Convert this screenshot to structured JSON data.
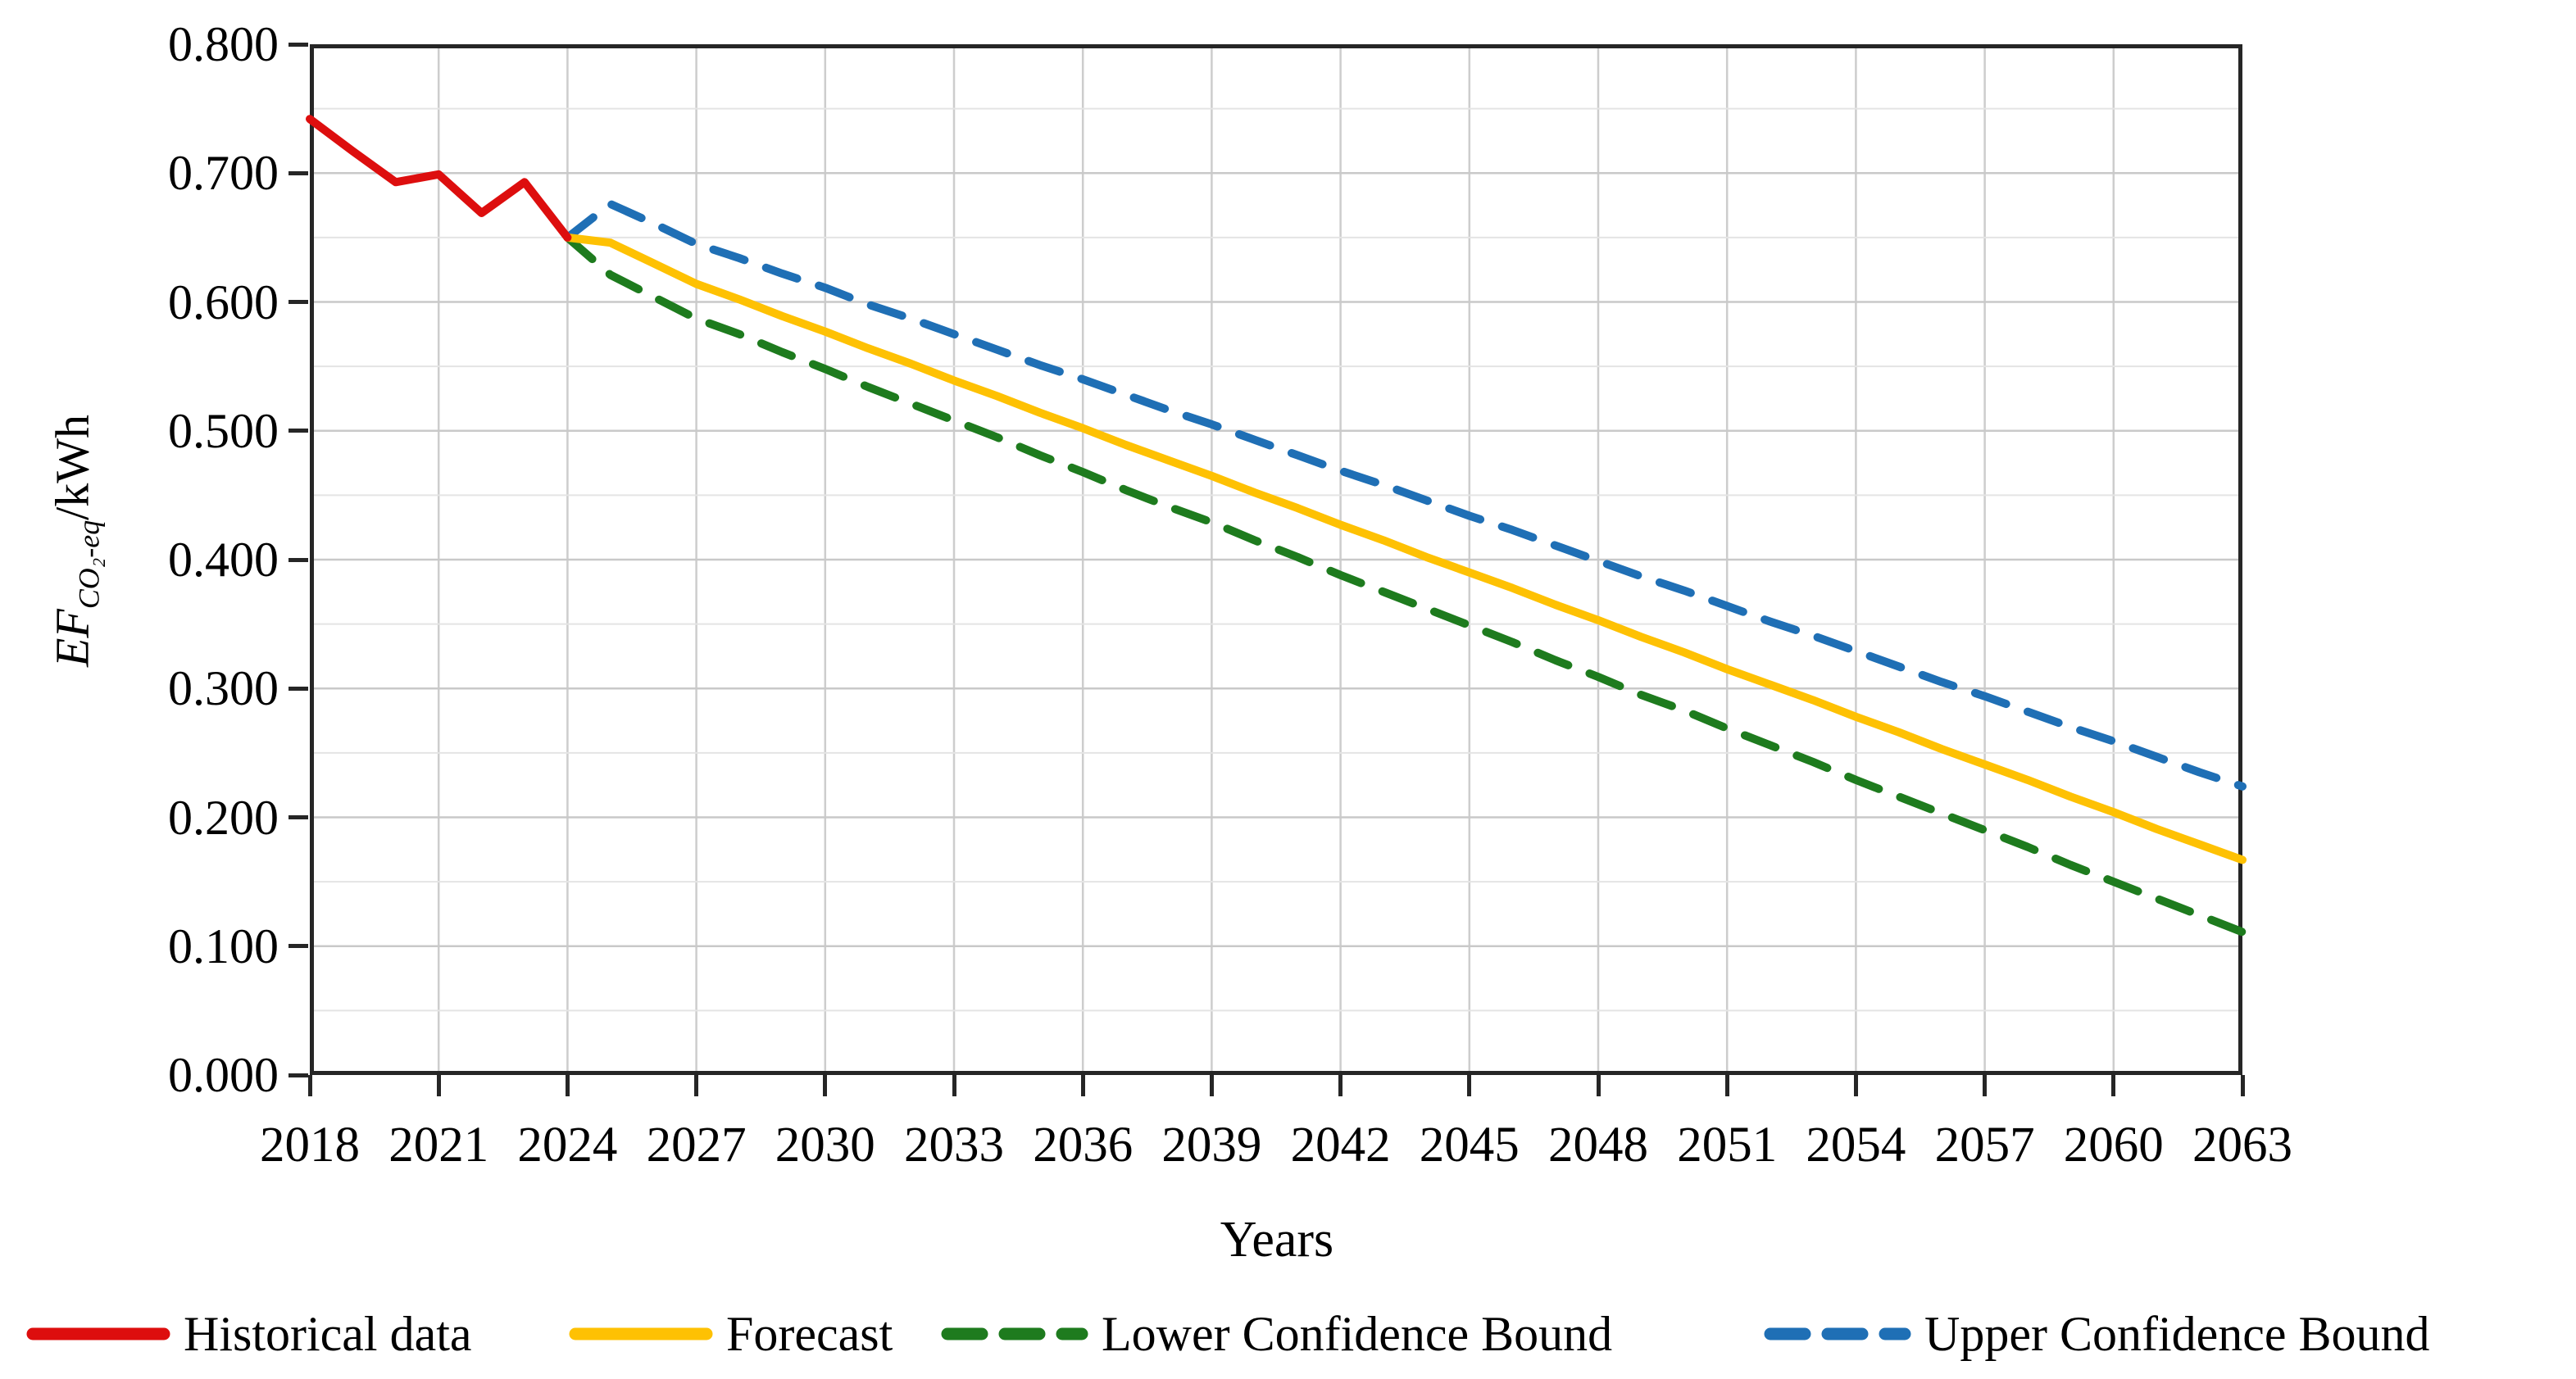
{
  "figure": {
    "background": "#ffffff",
    "x_axis_title": "Years",
    "y_axis_title": {
      "main": "EF",
      "sub": "CO₂-eq",
      "unit": "/kWh"
    }
  },
  "style_colors": {
    "axis": "#262626",
    "grid_major": "#c9c9c9",
    "grid_minor": "#e4e4e4",
    "grid_vertical": "#cdcdcd",
    "text": "#000000"
  },
  "chart_data": {
    "type": "line",
    "title": "",
    "xlabel": "Years",
    "ylabel": "EF CO₂-eq/kWh",
    "x_range": [
      2018,
      2063
    ],
    "ylim": [
      0.0,
      0.8
    ],
    "grid": true,
    "legend_position": "bottom",
    "y_minor_grid_step": 0.05,
    "x_tick_values": [
      2018,
      2021,
      2024,
      2027,
      2030,
      2033,
      2036,
      2039,
      2042,
      2045,
      2048,
      2051,
      2054,
      2057,
      2060,
      2063
    ],
    "x_tick_labels": [
      "2018",
      "2021",
      "2024",
      "2027",
      "2030",
      "2033",
      "2036",
      "2039",
      "2042",
      "2045",
      "2048",
      "2051",
      "2054",
      "2057",
      "2060",
      "2063"
    ],
    "y_tick_values": [
      0.0,
      0.1,
      0.2,
      0.3,
      0.4,
      0.5,
      0.6,
      0.7,
      0.8
    ],
    "y_tick_labels": [
      "0.000",
      "0.100",
      "0.200",
      "0.300",
      "0.400",
      "0.500",
      "0.600",
      "0.700",
      "0.800"
    ],
    "series": [
      {
        "name": "Upper Confidence Bound",
        "color": "#1f6fb5",
        "dashed": true,
        "x": [
          2024,
          2025,
          2026,
          2027,
          2028,
          2029,
          2030,
          2031,
          2032,
          2033,
          2034,
          2035,
          2036,
          2037,
          2038,
          2039,
          2040,
          2041,
          2042,
          2043,
          2044,
          2045,
          2046,
          2047,
          2048,
          2049,
          2050,
          2051,
          2052,
          2053,
          2054,
          2055,
          2056,
          2057,
          2058,
          2059,
          2060,
          2061,
          2062,
          2063
        ],
        "values": [
          0.65,
          0.676,
          0.661,
          0.645,
          0.634,
          0.622,
          0.611,
          0.598,
          0.587,
          0.575,
          0.563,
          0.551,
          0.54,
          0.528,
          0.516,
          0.505,
          0.493,
          0.481,
          0.469,
          0.458,
          0.446,
          0.434,
          0.423,
          0.411,
          0.399,
          0.387,
          0.376,
          0.364,
          0.352,
          0.341,
          0.329,
          0.317,
          0.305,
          0.294,
          0.282,
          0.27,
          0.259,
          0.247,
          0.235,
          0.224
        ]
      },
      {
        "name": "Lower Confidence Bound",
        "color": "#1e7b1e",
        "dashed": true,
        "x": [
          2024,
          2025,
          2026,
          2027,
          2028,
          2029,
          2030,
          2031,
          2032,
          2033,
          2034,
          2035,
          2036,
          2037,
          2038,
          2039,
          2040,
          2041,
          2042,
          2043,
          2044,
          2045,
          2046,
          2047,
          2048,
          2049,
          2050,
          2051,
          2052,
          2053,
          2054,
          2055,
          2056,
          2057,
          2058,
          2059,
          2060,
          2061,
          2062,
          2063
        ],
        "values": [
          0.65,
          0.621,
          0.604,
          0.587,
          0.575,
          0.561,
          0.548,
          0.534,
          0.521,
          0.508,
          0.495,
          0.481,
          0.468,
          0.454,
          0.441,
          0.429,
          0.415,
          0.402,
          0.388,
          0.375,
          0.362,
          0.349,
          0.336,
          0.322,
          0.309,
          0.295,
          0.283,
          0.269,
          0.256,
          0.243,
          0.229,
          0.216,
          0.203,
          0.19,
          0.177,
          0.163,
          0.15,
          0.137,
          0.124,
          0.111
        ]
      },
      {
        "name": "Forecast",
        "color": "#fec103",
        "dashed": false,
        "x": [
          2024,
          2025,
          2026,
          2027,
          2028,
          2029,
          2030,
          2031,
          2032,
          2033,
          2034,
          2035,
          2036,
          2037,
          2038,
          2039,
          2040,
          2041,
          2042,
          2043,
          2044,
          2045,
          2046,
          2047,
          2048,
          2049,
          2050,
          2051,
          2052,
          2053,
          2054,
          2055,
          2056,
          2057,
          2058,
          2059,
          2060,
          2061,
          2062,
          2063
        ],
        "values": [
          0.65,
          0.646,
          0.63,
          0.614,
          0.602,
          0.589,
          0.577,
          0.564,
          0.552,
          0.539,
          0.527,
          0.514,
          0.502,
          0.489,
          0.477,
          0.465,
          0.452,
          0.44,
          0.427,
          0.415,
          0.402,
          0.39,
          0.378,
          0.365,
          0.353,
          0.34,
          0.328,
          0.315,
          0.303,
          0.291,
          0.278,
          0.266,
          0.253,
          0.241,
          0.229,
          0.216,
          0.204,
          0.191,
          0.179,
          0.167
        ]
      },
      {
        "name": "Historical data",
        "color": "#dd0e0e",
        "dashed": false,
        "x": [
          2018,
          2019,
          2020,
          2021,
          2022,
          2023,
          2024
        ],
        "values": [
          0.742,
          0.717,
          0.693,
          0.699,
          0.669,
          0.693,
          0.65
        ]
      }
    ],
    "legend_order": [
      3,
      2,
      1,
      0
    ]
  }
}
